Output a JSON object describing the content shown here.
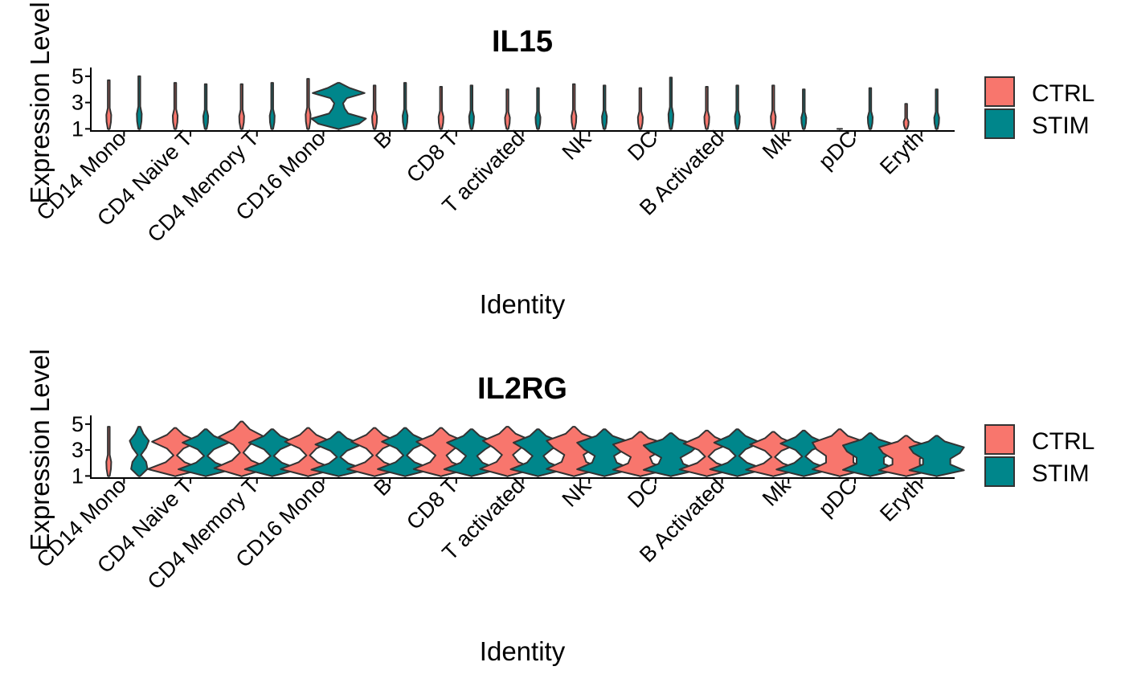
{
  "chart_data": [
    {
      "type": "violin",
      "title": "IL15",
      "xlabel": "Identity",
      "ylabel": "Expression Level",
      "y_ticks": [
        1,
        3,
        5
      ],
      "ylim": [
        0.9,
        5.3
      ],
      "categories": [
        "CD14 Mono",
        "CD4 Naive T",
        "CD4 Memory T",
        "CD16 Mono",
        "B",
        "CD8 T",
        "T activated",
        "NK",
        "DC",
        "B Activated",
        "Mk",
        "pDC",
        "Eryth"
      ],
      "legend": {
        "position": "right",
        "entries": [
          "CTRL",
          "STIM"
        ]
      },
      "series": [
        {
          "name": "CTRL",
          "color": "#F8766D",
          "max": [
            4.7,
            4.5,
            4.4,
            4.8,
            4.3,
            4.2,
            4.0,
            4.4,
            4.1,
            4.2,
            4.3,
            1.0,
            2.9
          ],
          "dens": [
            [
              0,
              0.08,
              0.09,
              0,
              0,
              0,
              0,
              0
            ],
            [
              0,
              0.08,
              0.09,
              0,
              0,
              0,
              0,
              0
            ],
            [
              0,
              0.08,
              0.09,
              0,
              0,
              0,
              0,
              0
            ],
            [
              0,
              0.08,
              0.09,
              0,
              0,
              0,
              0,
              0
            ],
            [
              0,
              0.08,
              0.09,
              0,
              0,
              0,
              0,
              0
            ],
            [
              0,
              0.08,
              0.09,
              0,
              0,
              0,
              0,
              0
            ],
            [
              0,
              0.08,
              0.09,
              0,
              0,
              0,
              0,
              0
            ],
            [
              0,
              0.08,
              0.09,
              0,
              0,
              0,
              0,
              0
            ],
            [
              0,
              0.08,
              0.09,
              0,
              0,
              0,
              0,
              0
            ],
            [
              0,
              0.08,
              0.09,
              0,
              0,
              0,
              0,
              0
            ],
            [
              0,
              0.08,
              0.09,
              0,
              0,
              0,
              0,
              0
            ],
            [
              0,
              0.08,
              0.09,
              0,
              0,
              0,
              0,
              0
            ],
            [
              0,
              0.08,
              0.09,
              0,
              0,
              0,
              0,
              0
            ]
          ]
        },
        {
          "name": "STIM",
          "color": "#00868B",
          "max": [
            5.0,
            4.4,
            4.5,
            4.5,
            4.5,
            4.3,
            4.1,
            4.3,
            4.9,
            4.3,
            4.0,
            4.1,
            4.0
          ],
          "dens": [
            [
              0,
              0.08,
              0.09,
              0,
              0,
              0,
              0,
              0
            ],
            [
              0,
              0.08,
              0.09,
              0,
              0,
              0,
              0,
              0
            ],
            [
              0,
              0.08,
              0.09,
              0,
              0,
              0,
              0,
              0
            ],
            [
              0,
              0.75,
              1.0,
              0.35,
              0.22,
              0.16,
              0.3,
              0.95,
              0.4,
              0
            ],
            [
              0,
              0.08,
              0.09,
              0,
              0,
              0,
              0,
              0
            ],
            [
              0,
              0.08,
              0.09,
              0,
              0,
              0,
              0,
              0
            ],
            [
              0,
              0.08,
              0.09,
              0,
              0,
              0,
              0,
              0
            ],
            [
              0,
              0.08,
              0.09,
              0,
              0,
              0,
              0,
              0
            ],
            [
              0,
              0.08,
              0.09,
              0,
              0,
              0,
              0,
              0
            ],
            [
              0,
              0.08,
              0.09,
              0,
              0,
              0,
              0,
              0
            ],
            [
              0,
              0.08,
              0.09,
              0,
              0,
              0,
              0,
              0
            ],
            [
              0,
              0.08,
              0.09,
              0,
              0,
              0,
              0,
              0
            ],
            [
              0,
              0.08,
              0.09,
              0,
              0,
              0,
              0,
              0
            ]
          ]
        }
      ]
    },
    {
      "type": "violin",
      "title": "IL2RG",
      "xlabel": "Identity",
      "ylabel": "Expression Level",
      "y_ticks": [
        1,
        3,
        5
      ],
      "ylim": [
        0.9,
        5.3
      ],
      "categories": [
        "CD14 Mono",
        "CD4 Naive T",
        "CD4 Memory T",
        "CD16 Mono",
        "B",
        "CD8 T",
        "T activated",
        "NK",
        "DC",
        "B Activated",
        "Mk",
        "pDC",
        "Eryth"
      ],
      "legend": {
        "position": "right",
        "entries": [
          "CTRL",
          "STIM"
        ]
      },
      "series": [
        {
          "name": "CTRL",
          "color": "#F8766D",
          "max": [
            4.8,
            4.7,
            5.2,
            4.7,
            4.7,
            4.7,
            4.8,
            4.8,
            4.4,
            4.5,
            4.4,
            4.6,
            4.1
          ],
          "dens": [
            [
              0,
              0.08,
              0.09,
              0,
              0,
              0,
              0,
              0
            ],
            [
              0,
              1.0,
              0.35,
              0.06,
              0.3,
              0.85,
              0.3,
              0
            ],
            [
              0,
              1.0,
              0.35,
              0.06,
              0.3,
              0.85,
              0.3,
              0
            ],
            [
              0,
              1.0,
              0.35,
              0.06,
              0.3,
              0.85,
              0.3,
              0
            ],
            [
              0,
              1.0,
              0.35,
              0.06,
              0.3,
              0.85,
              0.3,
              0
            ],
            [
              0,
              1.0,
              0.4,
              0.2,
              0.5,
              0.9,
              0.3,
              0
            ],
            [
              0,
              1.0,
              0.4,
              0.2,
              0.5,
              0.9,
              0.3,
              0
            ],
            [
              0,
              1.0,
              0.45,
              0.35,
              0.75,
              1.0,
              0.3,
              0
            ],
            [
              0,
              1.0,
              0.45,
              0.35,
              0.75,
              1.0,
              0.3,
              0
            ],
            [
              0,
              1.0,
              0.35,
              0.06,
              0.3,
              0.85,
              0.3,
              0
            ],
            [
              0,
              1.0,
              0.35,
              0.06,
              0.3,
              0.85,
              0.3,
              0
            ],
            [
              0,
              1.0,
              0.5,
              0.5,
              0.85,
              1.0,
              0.3,
              0
            ],
            [
              0,
              1.0,
              0.5,
              0.5,
              0.85,
              1.0,
              0.3,
              0
            ]
          ]
        },
        {
          "name": "STIM",
          "color": "#00868B",
          "max": [
            4.8,
            4.6,
            4.6,
            4.4,
            4.7,
            4.6,
            4.6,
            4.6,
            4.3,
            4.6,
            4.5,
            4.3,
            4.1
          ],
          "dens": [
            [
              0,
              0.3,
              0.25,
              0.06,
              0.25,
              0.35,
              0.15,
              0
            ],
            [
              0,
              1.0,
              0.35,
              0.06,
              0.3,
              0.85,
              0.3,
              0
            ],
            [
              0,
              1.0,
              0.35,
              0.06,
              0.3,
              0.85,
              0.3,
              0
            ],
            [
              0,
              1.0,
              0.35,
              0.06,
              0.3,
              0.85,
              0.3,
              0
            ],
            [
              0,
              1.0,
              0.35,
              0.06,
              0.3,
              0.85,
              0.3,
              0
            ],
            [
              0,
              1.0,
              0.4,
              0.2,
              0.5,
              0.9,
              0.3,
              0
            ],
            [
              0,
              1.0,
              0.4,
              0.2,
              0.5,
              0.9,
              0.3,
              0
            ],
            [
              0,
              1.0,
              0.45,
              0.35,
              0.75,
              1.0,
              0.3,
              0
            ],
            [
              0,
              1.0,
              0.45,
              0.35,
              0.75,
              1.0,
              0.3,
              0
            ],
            [
              0,
              1.0,
              0.35,
              0.06,
              0.3,
              0.85,
              0.3,
              0
            ],
            [
              0,
              1.0,
              0.35,
              0.06,
              0.3,
              0.85,
              0.3,
              0
            ],
            [
              0,
              1.0,
              0.5,
              0.5,
              0.85,
              1.0,
              0.3,
              0
            ],
            [
              0,
              1.0,
              0.5,
              0.5,
              0.85,
              1.0,
              0.3,
              0
            ]
          ]
        }
      ]
    }
  ]
}
